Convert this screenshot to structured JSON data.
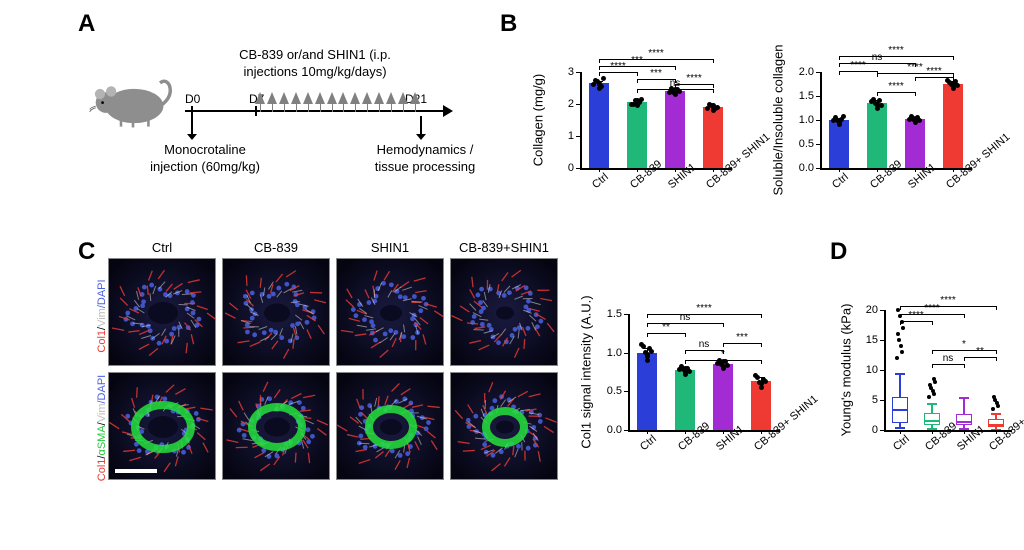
{
  "panelLabels": {
    "A": "A",
    "B": "B",
    "C": "C",
    "D": "D"
  },
  "colors": {
    "ctrl": "#2b3fd8",
    "cb839": "#1fb878",
    "shin1": "#a22bd4",
    "combo": "#ef3a34",
    "axis": "#000000",
    "bg": "#ffffff",
    "triFill": "#808080"
  },
  "categories": [
    "Ctrl",
    "CB-839",
    "SHIN1",
    "CB-839+ SHIN1"
  ],
  "panelA": {
    "title": "CB-839 or/and SHIN1 (i.p. injections 10mg/kg/days)",
    "d0": "D0",
    "d7": "D7",
    "d21": "D21",
    "leftAnnot": "Monocrotaline injection (60mg/kg)",
    "rightAnnot": "Hemodynamics / tissue processing"
  },
  "chartB1": {
    "type": "bar",
    "ylabel": "Collagen (mg/g)",
    "ylim": [
      0,
      3
    ],
    "ytick_step": 1,
    "values": [
      2.65,
      2.05,
      2.4,
      1.9
    ],
    "errors": [
      0.08,
      0.06,
      0.06,
      0.05
    ],
    "scatter": [
      [
        2.5,
        2.6,
        2.7,
        2.55,
        2.75,
        2.8,
        2.6,
        2.65
      ],
      [
        1.95,
        2.0,
        2.1,
        2.05,
        2.0,
        2.15,
        2.0,
        2.1
      ],
      [
        2.3,
        2.4,
        2.35,
        2.45,
        2.5,
        2.4,
        2.35,
        2.45
      ],
      [
        1.8,
        1.9,
        1.95,
        1.85,
        2.0,
        1.9,
        1.85,
        1.95
      ]
    ],
    "sig": [
      {
        "i": 0,
        "j": 1,
        "y": 3.0,
        "label": "****"
      },
      {
        "i": 0,
        "j": 2,
        "y": 3.2,
        "label": "***"
      },
      {
        "i": 0,
        "j": 3,
        "y": 3.4,
        "label": "****"
      },
      {
        "i": 1,
        "j": 2,
        "y": 2.78,
        "label": "***"
      },
      {
        "i": 1,
        "j": 3,
        "y": 2.48,
        "label": "ns"
      },
      {
        "i": 2,
        "j": 3,
        "y": 2.63,
        "label": "****"
      }
    ]
  },
  "chartB2": {
    "type": "bar",
    "ylabel": "Soluble/Insoluble collagen",
    "ylim": [
      0,
      2.0
    ],
    "ytick_step": 0.5,
    "values": [
      1.0,
      1.35,
      1.03,
      1.75
    ],
    "errors": [
      0.05,
      0.06,
      0.04,
      0.06
    ],
    "scatter": [
      [
        0.9,
        0.95,
        1.0,
        1.02,
        1.05,
        1.08,
        0.98,
        1.0
      ],
      [
        1.25,
        1.3,
        1.35,
        1.4,
        1.42,
        1.3,
        1.38,
        1.32
      ],
      [
        0.95,
        1.0,
        1.02,
        1.05,
        1.08,
        1.0,
        1.02,
        1.04
      ],
      [
        1.65,
        1.7,
        1.75,
        1.8,
        1.78,
        1.72,
        1.82,
        1.76
      ]
    ],
    "sig": [
      {
        "i": 0,
        "j": 1,
        "y": 2.02,
        "label": "****"
      },
      {
        "i": 0,
        "j": 2,
        "y": 2.18,
        "label": "ns"
      },
      {
        "i": 0,
        "j": 3,
        "y": 2.34,
        "label": "****"
      },
      {
        "i": 1,
        "j": 2,
        "y": 1.58,
        "label": "****"
      },
      {
        "i": 1,
        "j": 3,
        "y": 1.98,
        "label": "****"
      },
      {
        "i": 2,
        "j": 3,
        "y": 1.9,
        "label": "****"
      }
    ]
  },
  "chartC": {
    "type": "bar",
    "ylabel": "Col1 signal intensity (A.U.)",
    "ylim": [
      0,
      1.5
    ],
    "ytick_step": 0.5,
    "values": [
      1.0,
      0.78,
      0.85,
      0.63
    ],
    "errors": [
      0.06,
      0.04,
      0.04,
      0.05
    ],
    "scatter": [
      [
        0.9,
        0.95,
        1.0,
        1.05,
        1.08,
        1.02,
        1.1,
        0.98
      ],
      [
        0.72,
        0.75,
        0.78,
        0.8,
        0.82,
        0.76,
        0.78,
        0.8
      ],
      [
        0.8,
        0.82,
        0.85,
        0.88,
        0.9,
        0.83,
        0.86,
        0.88
      ],
      [
        0.55,
        0.6,
        0.62,
        0.65,
        0.68,
        0.63,
        0.7,
        0.6
      ]
    ],
    "sig": [
      {
        "i": 0,
        "j": 1,
        "y": 1.25,
        "label": "**"
      },
      {
        "i": 0,
        "j": 2,
        "y": 1.38,
        "label": "ns"
      },
      {
        "i": 0,
        "j": 3,
        "y": 1.5,
        "label": "****"
      },
      {
        "i": 1,
        "j": 2,
        "y": 1.04,
        "label": "ns"
      },
      {
        "i": 1,
        "j": 3,
        "y": 0.9,
        "label": "*"
      },
      {
        "i": 2,
        "j": 3,
        "y": 1.12,
        "label": "***"
      }
    ]
  },
  "chartD": {
    "type": "boxplot",
    "ylabel": "Young's modulus (kPa)",
    "ylim": [
      0,
      20
    ],
    "ytick_step": 5,
    "boxes": [
      {
        "q1": 1.2,
        "med": 3.5,
        "q3": 5.5,
        "lo": 0.5,
        "hi": 9.5,
        "outliers": [
          12,
          13,
          14,
          15,
          16,
          17,
          18,
          19,
          20
        ]
      },
      {
        "q1": 0.8,
        "med": 1.6,
        "q3": 2.8,
        "lo": 0.3,
        "hi": 4.5,
        "outliers": [
          5.5,
          6,
          6.5,
          7,
          7.5,
          8,
          8.5
        ]
      },
      {
        "q1": 0.8,
        "med": 1.5,
        "q3": 2.6,
        "lo": 0.3,
        "hi": 5.5,
        "outliers": []
      },
      {
        "q1": 0.5,
        "med": 1.0,
        "q3": 1.8,
        "lo": 0.2,
        "hi": 2.8,
        "outliers": [
          3.5,
          4,
          4.5,
          5,
          5.5
        ]
      }
    ],
    "sig": [
      {
        "i": 0,
        "j": 1,
        "y": 18.2,
        "label": "****"
      },
      {
        "i": 0,
        "j": 2,
        "y": 19.4,
        "label": "****"
      },
      {
        "i": 0,
        "j": 3,
        "y": 20.6,
        "label": "****"
      },
      {
        "i": 1,
        "j": 2,
        "y": 11.0,
        "label": "ns"
      },
      {
        "i": 1,
        "j": 3,
        "y": 13.4,
        "label": "*"
      },
      {
        "i": 2,
        "j": 3,
        "y": 12.2,
        "label": "**"
      }
    ]
  },
  "panelC_images": {
    "colLabels": [
      "Ctrl",
      "CB-839",
      "SHIN1",
      "CB-839+SHIN1"
    ],
    "rowLabels": [
      {
        "parts": [
          {
            "t": "Col1",
            "c": "#ef3a34"
          },
          {
            "t": "/",
            "c": "#000"
          },
          {
            "t": "Vim",
            "c": "#bdbdbd"
          },
          {
            "t": "/DAPI",
            "c": "#4a60e0"
          }
        ]
      },
      {
        "parts": [
          {
            "t": "Col1",
            "c": "#ef3a34"
          },
          {
            "t": "/",
            "c": "#000"
          },
          {
            "t": "αSMA",
            "c": "#24c73d"
          },
          {
            "t": "/",
            "c": "#000"
          },
          {
            "t": "Vim",
            "c": "#bdbdbd"
          },
          {
            "t": "/DAPI",
            "c": "#4a60e0"
          }
        ]
      }
    ]
  }
}
